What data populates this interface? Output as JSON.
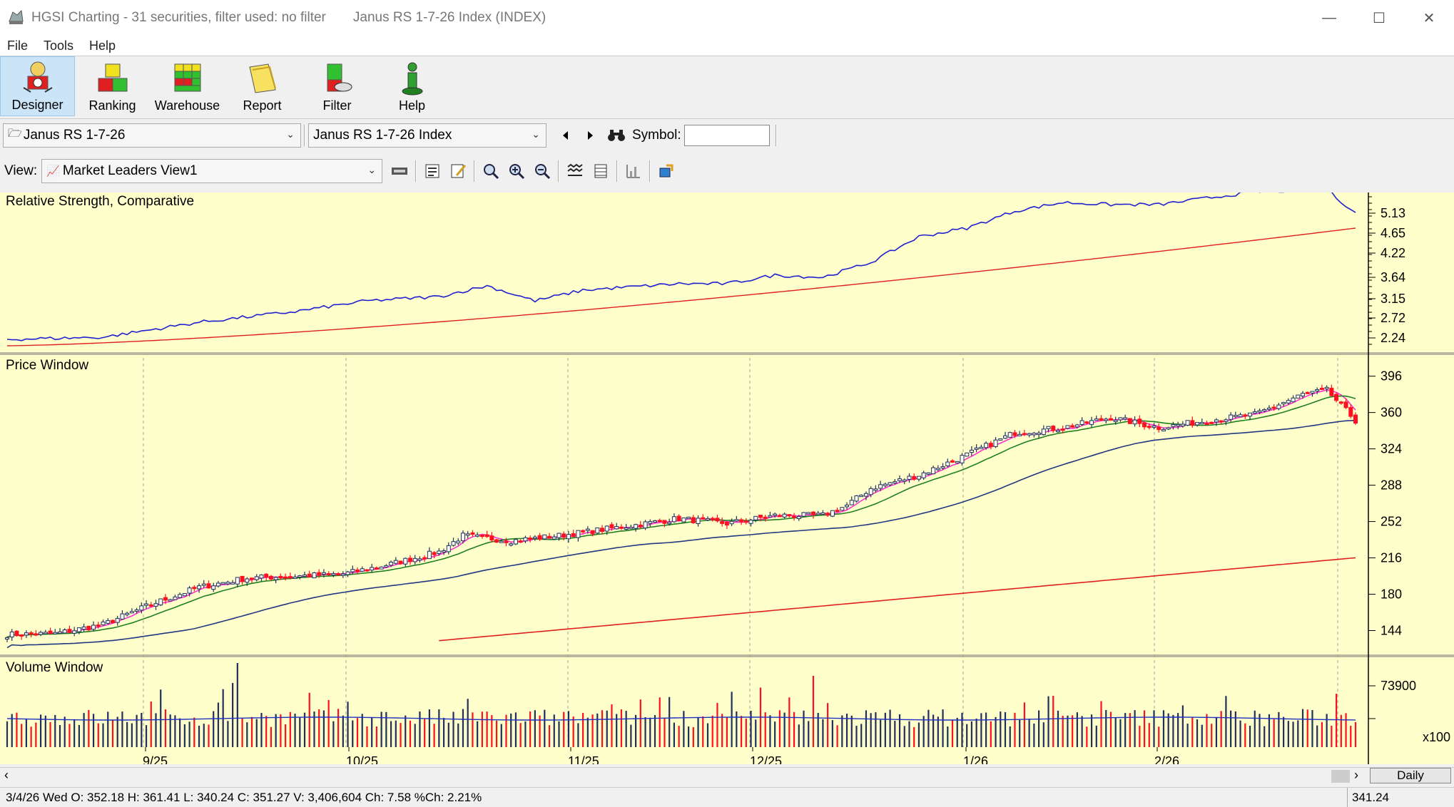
{
  "window": {
    "title": "HGSI Charting - 31 securities, filter used: no filter",
    "subtitle": "Janus RS 1-7-26 Index (INDEX)",
    "minimize": "—",
    "maximize": "☐",
    "close": "✕"
  },
  "menu": [
    "File",
    "Tools",
    "Help"
  ],
  "toolbar": {
    "buttons": [
      {
        "label": "Designer",
        "icon": "designer-icon"
      },
      {
        "label": "Ranking",
        "icon": "ranking-icon"
      },
      {
        "label": "Warehouse",
        "icon": "warehouse-icon"
      },
      {
        "label": "Report",
        "icon": "report-icon"
      },
      {
        "label": "Filter",
        "icon": "filter-icon"
      },
      {
        "label": "Help",
        "icon": "help-icon"
      }
    ]
  },
  "selectors": {
    "list": "Janus RS 1-7-26",
    "security": "Janus RS 1-7-26 Index",
    "symbol_label": "Symbol:",
    "symbol_value": ""
  },
  "view": {
    "label": "View:",
    "value": "Market Leaders View1"
  },
  "panels": {
    "rs_title": "Relative Strength, Comparative",
    "price_title": "Price Window",
    "volume_title": "Volume Window"
  },
  "axes": {
    "rs_ticks": [
      "5.13",
      "4.65",
      "4.22",
      "3.64",
      "3.15",
      "2.72",
      "2.24"
    ],
    "price_ticks": [
      "396",
      "360",
      "324",
      "288",
      "252",
      "216",
      "180",
      "144"
    ],
    "volume_ticks": [
      "73900"
    ],
    "volume_multiplier": "x100",
    "date_labels": [
      "9/25",
      "10/25",
      "11/25",
      "12/25",
      "1/26",
      "2/26"
    ]
  },
  "colors": {
    "chart_bg": "#ffffcc",
    "rs_line": "#2020d0",
    "rs_ma": "#e02020",
    "up_candle": "#20305a",
    "down_candle": "#ff1020",
    "ma_pink": "#ff30d0",
    "ma_green": "#208020",
    "ma_navy": "#203880",
    "ma_red": "#e02020",
    "volume_line": "#2030c0"
  },
  "scroll": {
    "period": "Daily"
  },
  "status": {
    "text": "3/4/26 Wed O: 352.18 H: 361.41 L: 340.24 C: 351.27 V: 3,406,604 Ch: 7.58 %Ch: 2.21%",
    "right": "341.24"
  },
  "chart_data": {
    "type": "candlestick",
    "date_ticks": [
      "9/25",
      "10/25",
      "11/25",
      "12/25",
      "1/26",
      "2/26"
    ],
    "price_range": [
      126,
      400
    ],
    "rs_range": [
      2.1,
      5.6
    ],
    "last_bar": {
      "date": "3/4/26",
      "open": 352.18,
      "high": 361.41,
      "low": 340.24,
      "close": 351.27,
      "volume": 3406604,
      "change": 7.58,
      "pct_change": "2.21%"
    },
    "price_anchors": [
      [
        0,
        140
      ],
      [
        10,
        141
      ],
      [
        20,
        150
      ],
      [
        30,
        170
      ],
      [
        40,
        187
      ],
      [
        50,
        196
      ],
      [
        60,
        198
      ],
      [
        70,
        200
      ],
      [
        80,
        210
      ],
      [
        90,
        222
      ],
      [
        95,
        238
      ],
      [
        105,
        233
      ],
      [
        115,
        238
      ],
      [
        130,
        248
      ],
      [
        140,
        255
      ],
      [
        150,
        250
      ],
      [
        160,
        258
      ],
      [
        170,
        258
      ],
      [
        175,
        268
      ],
      [
        180,
        285
      ],
      [
        190,
        298
      ],
      [
        200,
        318
      ],
      [
        210,
        340
      ],
      [
        220,
        345
      ],
      [
        230,
        355
      ],
      [
        240,
        345
      ],
      [
        250,
        352
      ],
      [
        260,
        358
      ],
      [
        270,
        378
      ],
      [
        275,
        382
      ],
      [
        281,
        352
      ]
    ],
    "rs_anchors": [
      [
        0,
        2.3
      ],
      [
        20,
        2.35
      ],
      [
        40,
        2.7
      ],
      [
        60,
        2.95
      ],
      [
        75,
        3.2
      ],
      [
        90,
        3.3
      ],
      [
        100,
        3.55
      ],
      [
        110,
        3.2
      ],
      [
        120,
        3.45
      ],
      [
        140,
        3.6
      ],
      [
        150,
        3.6
      ],
      [
        160,
        3.8
      ],
      [
        170,
        3.75
      ],
      [
        180,
        4.1
      ],
      [
        190,
        4.7
      ],
      [
        200,
        4.9
      ],
      [
        210,
        5.3
      ],
      [
        220,
        5.5
      ],
      [
        230,
        5.45
      ],
      [
        240,
        5.45
      ],
      [
        250,
        5.6
      ],
      [
        260,
        5.75
      ],
      [
        275,
        5.8
      ],
      [
        281,
        5.25
      ]
    ]
  }
}
